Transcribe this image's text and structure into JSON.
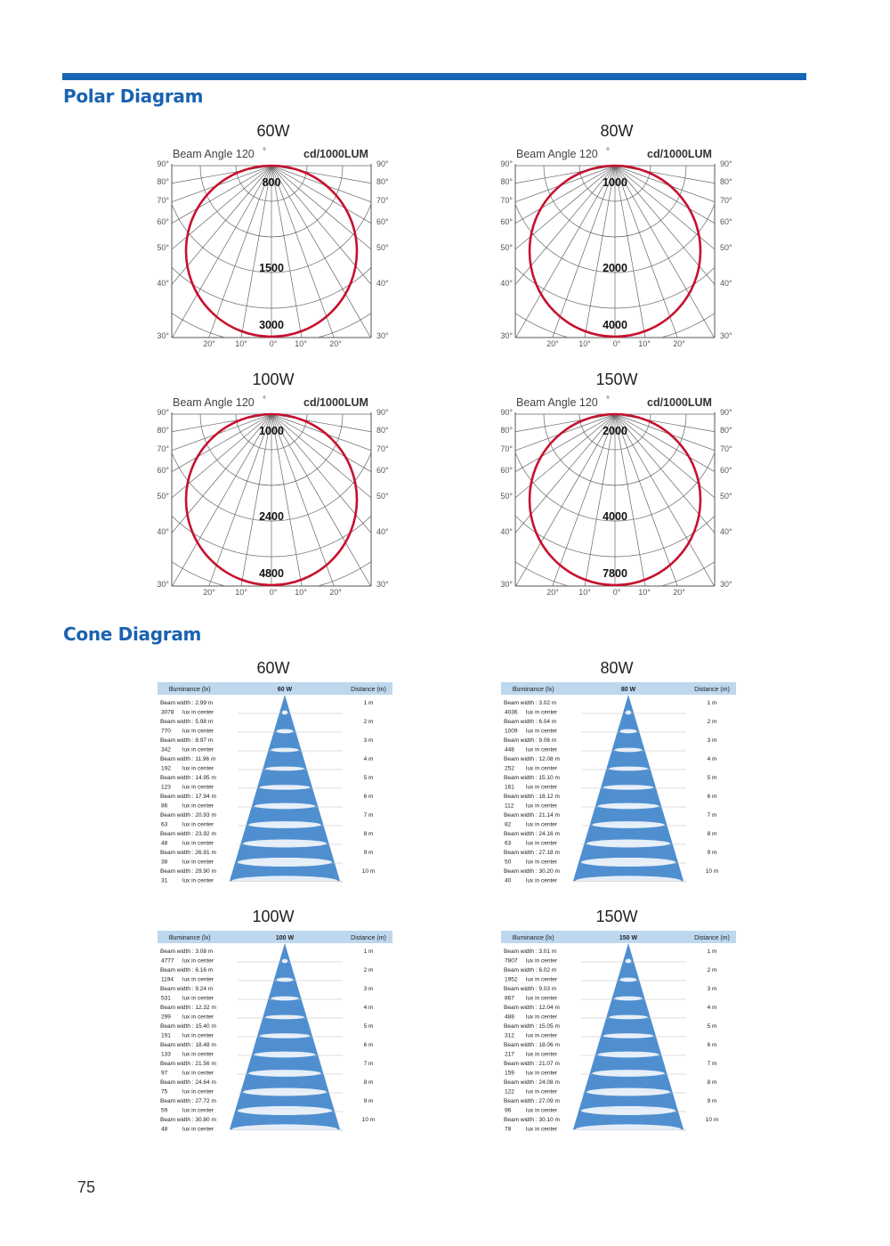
{
  "header": {
    "polar_title": "Polar Diagram",
    "cone_title": "Cone Diagram"
  },
  "page_number": "75",
  "colors": {
    "accent": "#1565b4",
    "curve": "#c8102e",
    "cone": "#4f8fd0",
    "cone_header": "#bdd7ee"
  },
  "polar_labels": {
    "beam_angle": "Beam Angle 120",
    "unit": "cd/1000LUM",
    "left_angles": [
      "90°",
      "80°",
      "70°",
      "60°",
      "50°",
      "40°",
      "30°"
    ],
    "right_angles": [
      "90°",
      "80°",
      "70°",
      "60°",
      "50°",
      "40°",
      "30°"
    ],
    "bottom_angles": [
      "20°",
      "10°",
      "0°",
      "10°",
      "20°"
    ]
  },
  "cone_labels": {
    "col_illuminance": "Illuminance (lx)",
    "col_distance": "Distance (m)",
    "beam_prefix": "Beam width :",
    "lux_suffix": "lux in center"
  },
  "chart_data": [
    {
      "type": "polar",
      "panel": "60W",
      "title": "60W",
      "rings": [
        "800",
        "1500",
        "3000"
      ],
      "beam_angle_deg": 120,
      "unit": "cd/1000LUM"
    },
    {
      "type": "polar",
      "panel": "80W",
      "title": "80W",
      "rings": [
        "1000",
        "2000",
        "4000"
      ],
      "beam_angle_deg": 120,
      "unit": "cd/1000LUM"
    },
    {
      "type": "polar",
      "panel": "100W",
      "title": "100W",
      "rings": [
        "1000",
        "2400",
        "4800"
      ],
      "beam_angle_deg": 120,
      "unit": "cd/1000LUM"
    },
    {
      "type": "polar",
      "panel": "150W",
      "title": "150W",
      "rings": [
        "2000",
        "4000",
        "7800"
      ],
      "beam_angle_deg": 120,
      "unit": "cd/1000LUM"
    },
    {
      "type": "table",
      "panel": "60W cone",
      "title": "60W",
      "header_center": "60 W",
      "distances": [
        "1 m",
        "2 m",
        "3 m",
        "4 m",
        "5 m",
        "6 m",
        "7 m",
        "8 m",
        "9 m",
        "10 m"
      ],
      "beam_width": [
        "2.99 m",
        "5.98 m",
        "8.97 m",
        "11.96 m",
        "14.95 m",
        "17.94 m",
        "20.93 m",
        "23.92 m",
        "26.91 m",
        "29.90 m"
      ],
      "lux_center": [
        "3078",
        "770",
        "342",
        "192",
        "123",
        "86",
        "63",
        "48",
        "38",
        "31"
      ]
    },
    {
      "type": "table",
      "panel": "80W cone",
      "title": "80W",
      "header_center": "80 W",
      "distances": [
        "1 m",
        "2 m",
        "3 m",
        "4 m",
        "5 m",
        "6 m",
        "7 m",
        "8 m",
        "9 m",
        "10 m"
      ],
      "beam_width": [
        "3.02 m",
        "6.04 m",
        "9.06 m",
        "12.08 m",
        "15.10 m",
        "18.12 m",
        "21.14 m",
        "24.16 m",
        "27.18 m",
        "30.20 m"
      ],
      "lux_center": [
        "4036",
        "1009",
        "448",
        "252",
        "161",
        "112",
        "82",
        "63",
        "50",
        "40"
      ]
    },
    {
      "type": "table",
      "panel": "100W cone",
      "title": "100W",
      "header_center": "100 W",
      "distances": [
        "1 m",
        "2 m",
        "3 m",
        "4 m",
        "5 m",
        "6 m",
        "7 m",
        "8 m",
        "9 m",
        "10 m"
      ],
      "beam_width": [
        "3.08 m",
        "6.16 m",
        "9.24 m",
        "12.32 m",
        "15.40 m",
        "18.48 m",
        "21.56 m",
        "24.64 m",
        "27.72 m",
        "30.80 m"
      ],
      "lux_center": [
        "4777",
        "1194",
        "531",
        "299",
        "191",
        "133",
        "97",
        "75",
        "59",
        "48"
      ]
    },
    {
      "type": "table",
      "panel": "150W cone",
      "title": "150W",
      "header_center": "150 W",
      "distances": [
        "1 m",
        "2 m",
        "3 m",
        "4 m",
        "5 m",
        "6 m",
        "7 m",
        "8 m",
        "9 m",
        "10 m"
      ],
      "beam_width": [
        "3.01 m",
        "6.02 m",
        "9.03 m",
        "12.04 m",
        "15.05 m",
        "18.06 m",
        "21.07 m",
        "24.08 m",
        "27.09 m",
        "30.10 m"
      ],
      "lux_center": [
        "7807",
        "1952",
        "867",
        "488",
        "312",
        "217",
        "159",
        "122",
        "96",
        "78"
      ]
    }
  ]
}
